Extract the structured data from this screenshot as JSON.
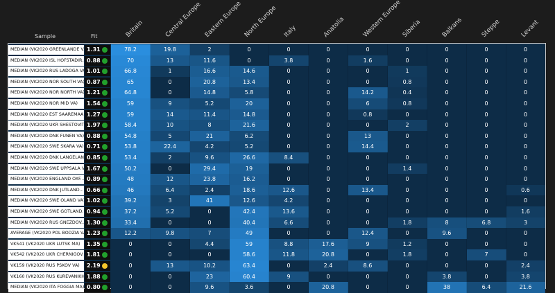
{
  "chart_data": {
    "type": "heatmap",
    "row_header": "Sample",
    "fit_header": "Fit",
    "columns": [
      "Britain",
      "Central Europe",
      "Eastern Europe",
      "North Europe",
      "Italy",
      "Anatolia",
      "Western Europe",
      "Siberia",
      "Balkans",
      "Steppe",
      "Levant"
    ],
    "rows": [
      {
        "sample": "MEDIAN (VK2020 GREENLANDE V...",
        "fit": "1.31",
        "fit_status": "good",
        "values": [
          "78.2",
          "19.8",
          "2",
          "0",
          "0",
          "0",
          "0",
          "0",
          "0",
          "0",
          "0"
        ]
      },
      {
        "sample": "MEDIAN (VK2020 ISL HOFSTADIR...",
        "fit": "0.88",
        "fit_status": "good",
        "values": [
          "70",
          "13",
          "11.6",
          "0",
          "3.8",
          "0",
          "1.6",
          "0",
          "0",
          "0",
          "0"
        ]
      },
      {
        "sample": "MEDIAN (VK2020 RUS LADOGA VA)",
        "fit": "1.01",
        "fit_status": "good",
        "values": [
          "66.8",
          "1",
          "16.6",
          "14.6",
          "0",
          "0",
          "0",
          "1",
          "0",
          "0",
          "0"
        ]
      },
      {
        "sample": "MEDIAN (VK2020 NOR SOUTH VA)",
        "fit": "0.87",
        "fit_status": "good",
        "values": [
          "65",
          "0",
          "20.8",
          "13.4",
          "0",
          "0",
          "0",
          "0.8",
          "0",
          "0",
          "0"
        ]
      },
      {
        "sample": "MEDIAN (VK2020 NOR NORTH VA)",
        "fit": "1.21",
        "fit_status": "good",
        "values": [
          "64.8",
          "0",
          "14.8",
          "5.8",
          "0",
          "0",
          "14.2",
          "0.4",
          "0",
          "0",
          "0"
        ]
      },
      {
        "sample": "MEDIAN (VK2020 NOR MID VA)",
        "fit": "1.54",
        "fit_status": "good",
        "values": [
          "59",
          "9",
          "5.2",
          "20",
          "0",
          "0",
          "6",
          "0.8",
          "0",
          "0",
          "0"
        ]
      },
      {
        "sample": "MEDIAN (VK2020 EST SAAREMAA...",
        "fit": "1.27",
        "fit_status": "good",
        "values": [
          "59",
          "14",
          "11.4",
          "14.8",
          "0",
          "0",
          "0.8",
          "0",
          "0",
          "0",
          "0"
        ]
      },
      {
        "sample": "MEDIAN (VK2020 UKR SHESTOVIT...",
        "fit": "1.97",
        "fit_status": "good",
        "values": [
          "58.4",
          "10",
          "8",
          "21.6",
          "0",
          "0",
          "0",
          "2",
          "0",
          "0",
          "0"
        ]
      },
      {
        "sample": "MEDIAN (VK2020 DNK FUNEN VA)",
        "fit": "0.88",
        "fit_status": "good",
        "values": [
          "54.8",
          "5",
          "21",
          "6.2",
          "0",
          "0",
          "13",
          "0",
          "0",
          "0",
          "0"
        ]
      },
      {
        "sample": "MEDIAN (VK2020 SWE SKARA VA)",
        "fit": "0.71",
        "fit_status": "good",
        "values": [
          "53.8",
          "22.4",
          "4.2",
          "5.2",
          "0",
          "0",
          "14.4",
          "0",
          "0",
          "0",
          "0"
        ]
      },
      {
        "sample": "MEDIAN (VK2020 DNK LANGELAN...",
        "fit": "0.85",
        "fit_status": "good",
        "values": [
          "53.4",
          "2",
          "9.6",
          "26.6",
          "8.4",
          "0",
          "0",
          "0",
          "0",
          "0",
          "0"
        ]
      },
      {
        "sample": "MEDIAN (VK2020 SWE UPPSALA V...",
        "fit": "1.67",
        "fit_status": "good",
        "values": [
          "50.2",
          "0",
          "29.4",
          "19",
          "0",
          "0",
          "0",
          "1.4",
          "0",
          "0",
          "0"
        ]
      },
      {
        "sample": "MEDIAN (VK2020 ENGLAND OXF...",
        "fit": "0.89",
        "fit_status": "good",
        "values": [
          "48",
          "12",
          "23.8",
          "16.2",
          "0",
          "0",
          "0",
          "0",
          "0",
          "0",
          "0"
        ]
      },
      {
        "sample": "MEDIAN (VK2020 DNK JUTLAND...",
        "fit": "0.66",
        "fit_status": "good",
        "values": [
          "46",
          "6.4",
          "2.4",
          "18.6",
          "12.6",
          "0",
          "13.4",
          "0",
          "0",
          "0",
          "0.6"
        ]
      },
      {
        "sample": "MEDIAN (VK2020 SWE OLAND VA)",
        "fit": "1.02",
        "fit_status": "good",
        "values": [
          "39.2",
          "3",
          "41",
          "12.6",
          "4.2",
          "0",
          "0",
          "0",
          "0",
          "0",
          "0"
        ]
      },
      {
        "sample": "MEDIAN (VK2020 SWE GOTLAND...",
        "fit": "0.94",
        "fit_status": "good",
        "values": [
          "37.2",
          "5.2",
          "0",
          "42.4",
          "13.6",
          "0",
          "0",
          "0",
          "0",
          "0",
          "1.6"
        ]
      },
      {
        "sample": "MEDIAN (VK2020 RUS GNEZDOV...",
        "fit": "1.30",
        "fit_status": "good",
        "values": [
          "33.4",
          "0",
          "0",
          "40.4",
          "6.6",
          "0",
          "0",
          "1.8",
          "8",
          "6.8",
          "3"
        ]
      },
      {
        "sample": "AVERAGE (VK2020 POL BODZIA VA)",
        "fit": "1.23",
        "fit_status": "good",
        "values": [
          "12.2",
          "9.8",
          "7",
          "49",
          "0",
          "0",
          "12.4",
          "0",
          "9.6",
          "0",
          "0"
        ]
      },
      {
        "sample": "VK541 (VK2020 UKR LUTSK MA)",
        "fit": "1.35",
        "fit_status": "good",
        "values": [
          "0",
          "0",
          "4.4",
          "59",
          "8.8",
          "17.6",
          "9",
          "1.2",
          "0",
          "0",
          "0"
        ]
      },
      {
        "sample": "VK542 (VK2020 UKR CHERNIGOV...",
        "fit": "1.81",
        "fit_status": "good",
        "values": [
          "0",
          "0",
          "0",
          "58.6",
          "11.8",
          "20.8",
          "0",
          "1.8",
          "0",
          "7",
          "0"
        ]
      },
      {
        "sample": "VK159 (VK2020 RUS PSKOV VA)",
        "fit": "2.19",
        "fit_status": "warn",
        "values": [
          "0",
          "13",
          "10.2",
          "63.4",
          "0",
          "2.4",
          "8.6",
          "0",
          "0",
          "0",
          "2.4"
        ]
      },
      {
        "sample": "VK160 (VK2020 RUS KUREVANIKH...",
        "fit": "1.88",
        "fit_status": "good",
        "values": [
          "0",
          "0",
          "23",
          "60.4",
          "9",
          "0",
          "0",
          "0",
          "3.8",
          "0",
          "3.8"
        ]
      },
      {
        "sample": "MEDIAN (VK2020 ITA FOGGIA MA)",
        "fit": "0.80",
        "fit_status": "good",
        "values": [
          "0",
          "0",
          "9.6",
          "3.6",
          "0",
          "20.8",
          "0",
          "0",
          "38",
          "6.4",
          "21.6"
        ]
      }
    ],
    "colors": {
      "cell_low": "#0d2c47",
      "cell_high": "#2a8fe0",
      "fit_good": "#22a02c",
      "fit_warn": "#f4c52b"
    }
  }
}
